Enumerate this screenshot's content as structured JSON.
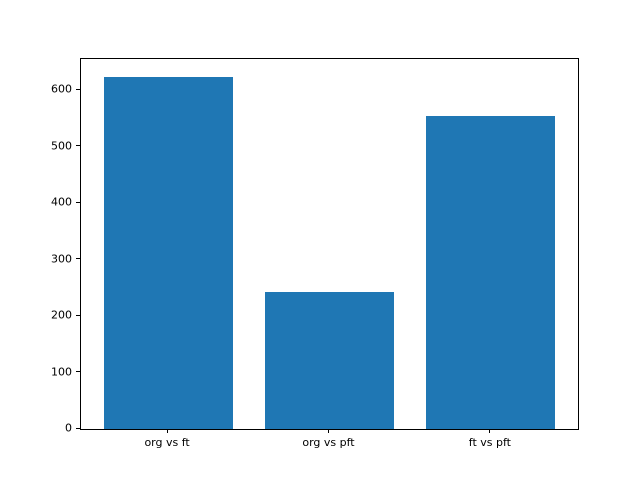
{
  "chart_data": {
    "type": "bar",
    "title": "",
    "xlabel": "",
    "ylabel": "",
    "categories": [
      "org vs ft",
      "org vs pft",
      "ft vs pft"
    ],
    "values": [
      623,
      243,
      555
    ],
    "bar_color": "#1f77b4",
    "yticks": [
      0,
      100,
      200,
      300,
      400,
      500,
      600
    ],
    "ytick_labels": [
      "0",
      "100",
      "200",
      "300",
      "400",
      "500",
      "600"
    ],
    "ylim": [
      0,
      655
    ],
    "xlim": [
      -0.54,
      2.54
    ],
    "bar_width": 0.8,
    "grid": false,
    "legend": "none",
    "spine_color": "#000000",
    "background_color": "#ffffff"
  }
}
